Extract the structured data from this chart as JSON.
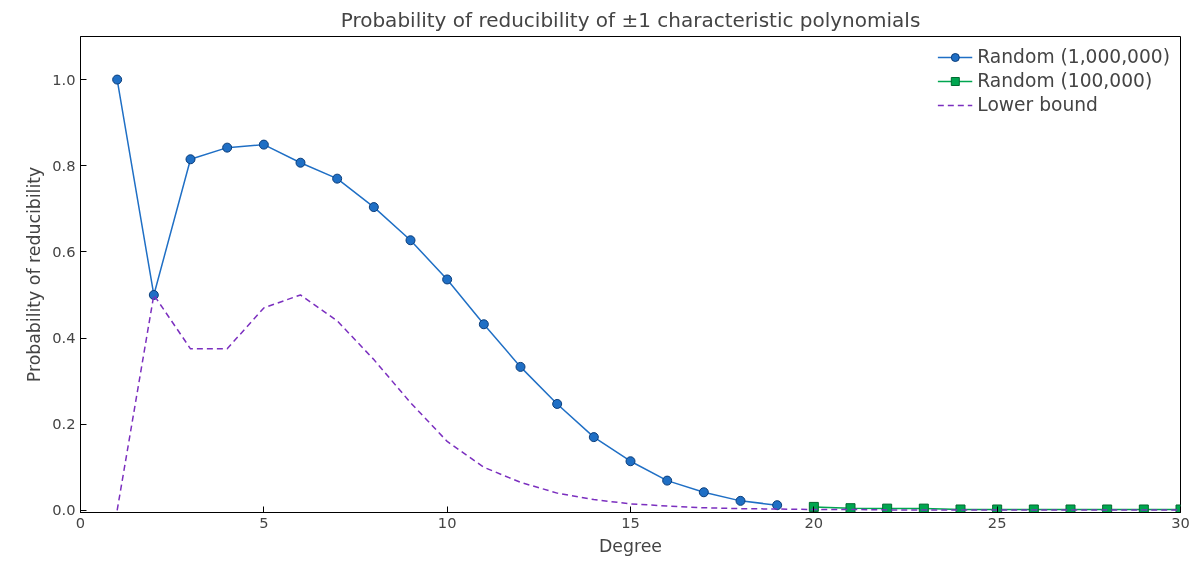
{
  "chart_data": {
    "type": "line",
    "title": "Probability of reducibility of ±1 characteristic polynomials",
    "xlabel": "Degree",
    "ylabel": "Probability of reducibility",
    "xlim": [
      0,
      30
    ],
    "xticks": [
      0,
      5,
      10,
      15,
      20,
      25,
      30
    ],
    "ylim": [
      -0.005,
      1.1
    ],
    "yticks": [
      {
        "value": 0,
        "label": "0.0"
      },
      {
        "value": 0.2,
        "label": "0.2"
      },
      {
        "value": 0.4,
        "label": "0.4"
      },
      {
        "value": 0.6,
        "label": "0.6"
      },
      {
        "value": 0.8,
        "label": "0.8"
      },
      {
        "value": 1,
        "label": "1.0"
      }
    ],
    "grid": false,
    "legend": "top right",
    "series": [
      {
        "name": "Random (1,000,000)",
        "color": "#1f6fc5",
        "marker": "circle",
        "line_style": "solid",
        "x": [
          1,
          2,
          3,
          4,
          5,
          6,
          7,
          8,
          9,
          10,
          11,
          12,
          13,
          14,
          15,
          16,
          17,
          18,
          19
        ],
        "values": [
          1.0,
          0.5,
          0.815,
          0.842,
          0.849,
          0.807,
          0.77,
          0.704,
          0.627,
          0.536,
          0.432,
          0.333,
          0.247,
          0.17,
          0.114,
          0.069,
          0.042,
          0.022,
          0.012
        ]
      },
      {
        "name": "Random (100,000)",
        "color": "#00a650",
        "marker": "square",
        "line_style": "solid",
        "x": [
          20,
          21,
          22,
          23,
          24,
          25,
          26,
          27,
          28,
          29,
          30
        ],
        "values": [
          0.008,
          0.005,
          0.004,
          0.004,
          0.002,
          0.002,
          0.002,
          0.002,
          0.002,
          0.002,
          0.002
        ]
      },
      {
        "name": "Lower bound",
        "color": "#7b2fbf",
        "marker": "none",
        "line_style": "dashed",
        "x": [
          1,
          2,
          3,
          4,
          5,
          6,
          7,
          8,
          9,
          10,
          11,
          12,
          13,
          14,
          15,
          16,
          17,
          18,
          19,
          20,
          21,
          22,
          23,
          24,
          25,
          26,
          27,
          28,
          29,
          30
        ],
        "values": [
          0,
          0.5,
          0.375,
          0.375,
          0.47,
          0.5,
          0.44,
          0.35,
          0.25,
          0.16,
          0.1,
          0.065,
          0.04,
          0.025,
          0.015,
          0.01,
          0.006,
          0.004,
          0.003,
          0.002,
          0.002,
          0.001,
          0.001,
          0.001,
          0.001,
          0.001,
          0.001,
          0.001,
          0.001,
          0.001
        ]
      }
    ]
  }
}
